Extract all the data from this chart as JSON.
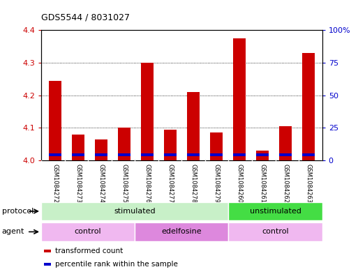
{
  "title": "GDS5544 / 8031027",
  "samples": [
    "GSM1084272",
    "GSM1084273",
    "GSM1084274",
    "GSM1084275",
    "GSM1084276",
    "GSM1084277",
    "GSM1084278",
    "GSM1084279",
    "GSM1084260",
    "GSM1084261",
    "GSM1084262",
    "GSM1084263"
  ],
  "transformed_counts": [
    4.245,
    4.08,
    4.065,
    4.1,
    4.3,
    4.095,
    4.21,
    4.085,
    4.375,
    4.03,
    4.105,
    4.33
  ],
  "percentile_values": [
    4.012,
    4.012,
    4.012,
    4.012,
    4.012,
    4.012,
    4.012,
    4.012,
    4.012,
    4.012,
    4.012,
    4.012
  ],
  "percentile_heights": [
    0.01,
    0.01,
    0.01,
    0.01,
    0.01,
    0.01,
    0.01,
    0.01,
    0.01,
    0.01,
    0.01,
    0.01
  ],
  "ylim_left": [
    4.0,
    4.4
  ],
  "ylim_right": [
    0,
    100
  ],
  "yticks_left": [
    4.0,
    4.1,
    4.2,
    4.3,
    4.4
  ],
  "yticks_right": [
    0,
    25,
    50,
    75,
    100
  ],
  "ytick_labels_right": [
    "0",
    "25",
    "50",
    "75",
    "100%"
  ],
  "bar_color_red": "#cc0000",
  "bar_color_blue": "#0000cc",
  "protocol_labels": [
    {
      "text": "stimulated",
      "start": 0,
      "end": 8,
      "color": "#c8f0c8"
    },
    {
      "text": "unstimulated",
      "start": 8,
      "end": 12,
      "color": "#44dd44"
    }
  ],
  "agent_labels": [
    {
      "text": "control",
      "start": 0,
      "end": 4,
      "color": "#f0b8f0"
    },
    {
      "text": "edelfosine",
      "start": 4,
      "end": 8,
      "color": "#dd88dd"
    },
    {
      "text": "control",
      "start": 8,
      "end": 12,
      "color": "#f0b8f0"
    }
  ],
  "legend_items": [
    {
      "label": "transformed count",
      "color": "#cc0000"
    },
    {
      "label": "percentile rank within the sample",
      "color": "#0000cc"
    }
  ],
  "background_color": "#ffffff",
  "plot_bg_color": "#ffffff",
  "tick_color_left": "#cc0000",
  "tick_color_right": "#0000cc",
  "xtick_bg_color": "#c8c8c8",
  "bar_width": 0.55
}
